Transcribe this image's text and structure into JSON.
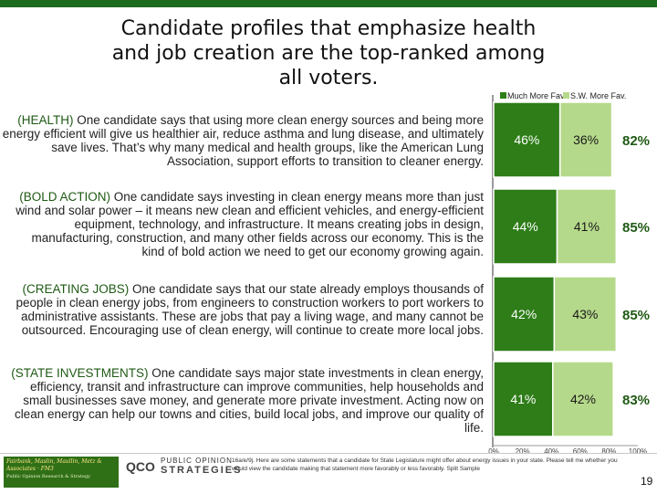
{
  "title": "Candidate profiles that emphasize health and job creation are the top-ranked among all voters.",
  "statements": [
    {
      "tag": "(HEALTH)",
      "text": " One candidate says that using more clean energy sources and being more energy efficient will give us healthier air, reduce asthma and lung disease, and ultimately save lives.  That’s why many medical and health groups, like the American Lung Association, support efforts to transition to cleaner energy."
    },
    {
      "tag": "(BOLD ACTION)",
      "text": " One candidate says investing in clean energy means more than just wind and solar power – it means new clean and efficient vehicles, and energy-efficient equipment, technology, and infrastructure.  It means creating jobs in design, manufacturing, construction, and many other fields across our economy.  This is the kind of bold action we need to get our economy growing again."
    },
    {
      "tag": "(CREATING JOBS)",
      "text": " One candidate says that our state already employs thousands of people in clean energy jobs, from engineers to construction workers to port workers to administrative assistants.  These are jobs that pay a living wage, and many cannot be outsourced.  Encouraging use of clean energy, will continue to create more local jobs."
    },
    {
      "tag": "(STATE INVESTMENTS)",
      "text": " One candidate says major state investments in clean energy, efficiency, transit and infrastructure can improve communities, help households and small businesses save money, and generate more private investment. Acting now on clean energy can help our towns and cities, build local jobs, and improve our quality of life."
    }
  ],
  "chart_data": {
    "type": "bar",
    "stacked": true,
    "orientation": "horizontal",
    "categories": [
      "HEALTH",
      "BOLD ACTION",
      "CREATING JOBS",
      "STATE INVESTMENTS"
    ],
    "series": [
      {
        "name": "Much More Fav.",
        "values": [
          46,
          44,
          42,
          41
        ],
        "labels": [
          "46%",
          "44%",
          "42%",
          "41%"
        ],
        "color": "#2e7d18"
      },
      {
        "name": "S.W. More Fav.",
        "values": [
          36,
          41,
          43,
          42
        ],
        "labels": [
          "36%",
          "41%",
          "43%",
          "42%"
        ],
        "color": "#b5d98a"
      }
    ],
    "totals": [
      "82%",
      "85%",
      "85%",
      "83%"
    ],
    "xlim": [
      0,
      100
    ],
    "xticks": [
      "0%",
      "20%",
      "40%",
      "60%",
      "80%",
      "100%"
    ],
    "legend": "top"
  },
  "footer": {
    "logo_text": "Fairbank, Maslin, Maullin, Metz & Associates · FM3",
    "logo_sub": "Public Opinion Research & Strategy",
    "logo2_text": "QCO",
    "po_line1": "PUBLIC OPINION",
    "po_line2": "STRATEGIES",
    "note": "16a/e/9j. Here are some statements that a candidate for State Legislature might offer about energy issues in your state. Please tell me whether you would view the candidate making that statement more favorably or less favorably.  Split Sample",
    "page": "19"
  },
  "colors": {
    "dark_green": "#2e7d18",
    "light_green": "#b5d98a",
    "tag_green": "#1f5a14",
    "bar_border": "#ffffff"
  }
}
